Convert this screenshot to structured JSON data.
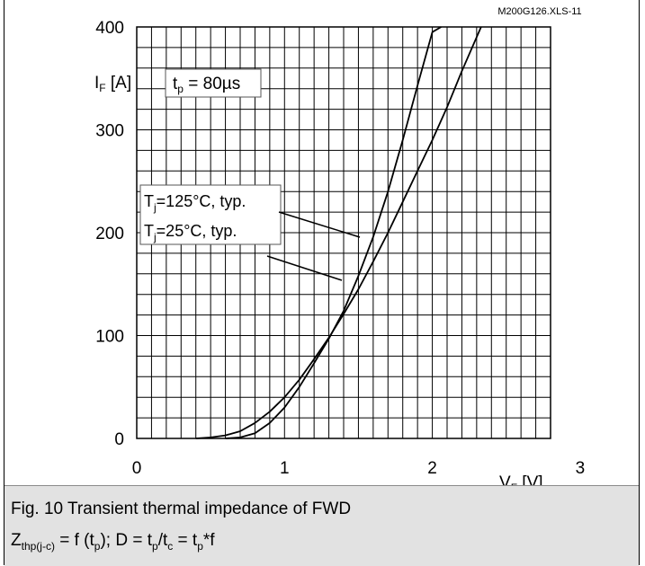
{
  "chart_data": {
    "type": "line",
    "source_code": "M200G126.XLS-11",
    "xlabel": "V_F [V]",
    "ylabel": "I_F [A]",
    "xlim": [
      0,
      2.8
    ],
    "ylim": [
      0,
      400
    ],
    "x_ticks": [
      "0",
      "1",
      "2",
      "3"
    ],
    "y_ticks": [
      "0",
      "100",
      "200",
      "300",
      "400"
    ],
    "grid": true,
    "condition": "t_p = 80µs",
    "series": [
      {
        "name": "T_j=125°C, typ.",
        "x": [
          0.4,
          0.5,
          0.6,
          0.7,
          0.8,
          0.9,
          1.0,
          1.1,
          1.2,
          1.3,
          1.4,
          1.5,
          1.6,
          1.7,
          1.8,
          1.9,
          2.0,
          2.1,
          2.2,
          2.33
        ],
        "y": [
          0,
          1,
          3,
          7,
          15,
          26,
          40,
          57,
          77,
          98,
          121,
          145,
          172,
          200,
          230,
          260,
          290,
          322,
          357,
          400
        ]
      },
      {
        "name": "T_j=25°C, typ.",
        "x": [
          0.6,
          0.7,
          0.8,
          0.9,
          1.0,
          1.1,
          1.2,
          1.3,
          1.4,
          1.5,
          1.6,
          1.7,
          1.8,
          1.9,
          2.0,
          2.06
        ],
        "y": [
          0,
          1,
          5,
          15,
          30,
          50,
          73,
          97,
          124,
          158,
          196,
          240,
          290,
          343,
          395,
          428
        ]
      }
    ]
  },
  "caption": {
    "line1": "Fig. 10 Transient thermal impedance of FWD",
    "line2": {
      "z": "Z",
      "z_sub": "thp(j-c)",
      "eq_a": " = f (t",
      "tp_sub": "p",
      "eq_b": "); D = t",
      "tp_sub2": "p",
      "eq_c": "/t",
      "tc_sub": "c",
      "eq_d": " = t",
      "tp_sub3": "p",
      "eq_e": "*f"
    }
  }
}
